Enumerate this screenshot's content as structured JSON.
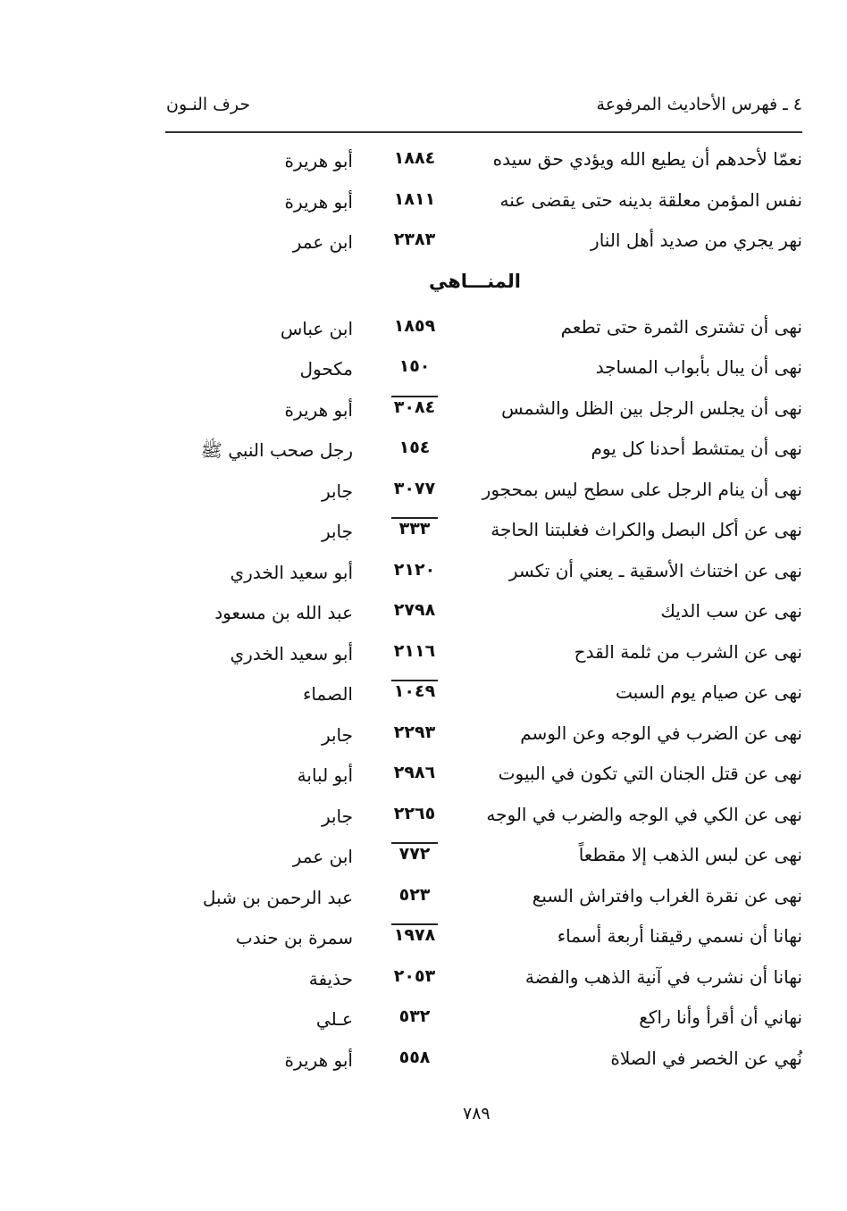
{
  "header": {
    "section_title": "٤ ـ فهرس الأحاديث المرفوعة",
    "letter": "حرف النـون"
  },
  "entries": [
    {
      "text": "نعمّا لأحدهم أن يطيع الله ويؤدي حق سيده",
      "number": "١٨٨٤",
      "narrator": "أبو هريرة",
      "overlined": false
    },
    {
      "text": "نفس المؤمن معلقة بدينه حتى يقضى عنه",
      "number": "١٨١١",
      "narrator": "أبو هريرة",
      "overlined": false
    },
    {
      "text": "نهر يجري من صديد أهل النار",
      "number": "٢٣٨٣",
      "narrator": "ابن عمر",
      "overlined": false
    }
  ],
  "section": {
    "title": "المنـــاهي"
  },
  "manahi": [
    {
      "text": "نهى أن تشترى الثمرة حتى تطعم",
      "number": "١٨٥٩",
      "narrator": "ابن عباس",
      "overlined": false
    },
    {
      "text": "نهى أن يبال بأبواب المساجد",
      "number": "١٥٠",
      "narrator": "مكحول",
      "overlined": false
    },
    {
      "text": "نهى أن يجلس الرجل بين الظل والشمس",
      "number": "٣٠٨٤",
      "narrator": "أبو هريرة",
      "overlined": true
    },
    {
      "text": "نهى أن يمتشط أحدنا كل يوم",
      "number": "١٥٤",
      "narrator": "رجل صحب النبي ﷺ",
      "overlined": false
    },
    {
      "text": "نهى أن ينام الرجل على سطح ليس بمحجور",
      "number": "٣٠٧٧",
      "narrator": "جابر",
      "overlined": false
    },
    {
      "text": "نهى عن أكل البصل والكراث فغلبتنا الحاجة",
      "number": "٣٣٣",
      "narrator": "جابر",
      "overlined": true
    },
    {
      "text": "نهى عن اختناث الأسقية ـ يعني أن تكسر",
      "number": "٢١٢٠",
      "narrator": "أبو سعيد الخدري",
      "overlined": false
    },
    {
      "text": "نهى عن سب الديك",
      "number": "٢٧٩٨",
      "narrator": "عبد الله بن مسعود",
      "overlined": false
    },
    {
      "text": "نهى عن الشرب من ثلمة القدح",
      "number": "٢١١٦",
      "narrator": "أبو سعيد الخدري",
      "overlined": false
    },
    {
      "text": "نهى عن صيام يوم السبت",
      "number": "١٠٤٩",
      "narrator": "الصماء",
      "overlined": true
    },
    {
      "text": "نهى عن الضرب في الوجه وعن الوسم",
      "number": "٢٢٩٣",
      "narrator": "جابر",
      "overlined": false
    },
    {
      "text": "نهى عن قتل الجنان التي تكون في البيوت",
      "number": "٢٩٨٦",
      "narrator": "أبو لبابة",
      "overlined": false
    },
    {
      "text": "نهى عن الكي في الوجه والضرب في الوجه",
      "number": "٢٢٦٥",
      "narrator": "جابر",
      "overlined": false
    },
    {
      "text": "نهى عن لبس الذهب إلا مقطعاً",
      "number": "٧٧٢",
      "narrator": "ابن عمر",
      "overlined": true
    },
    {
      "text": "نهى عن نقرة الغراب وافتراش السبع",
      "number": "٥٢٣",
      "narrator": "عبد الرحمن بن شبل",
      "overlined": false
    },
    {
      "text": "نهانا أن نسمي رقيقنا أربعة أسماء",
      "number": "١٩٧٨",
      "narrator": "سمرة بن حندب",
      "overlined": true
    },
    {
      "text": "نهانا أن نشرب في آنية الذهب والفضة",
      "number": "٢٠٥٣",
      "narrator": "حذيفة",
      "overlined": false
    },
    {
      "text": "نهاني أن أقرأ وأنا راكع",
      "number": "٥٣٢",
      "narrator": "عـلي",
      "overlined": false
    },
    {
      "text": "نُهي عن الخصر في الصلاة",
      "number": "٥٥٨",
      "narrator": "أبو هريرة",
      "overlined": false
    }
  ],
  "footer": {
    "page_number": "٧٨٩"
  }
}
